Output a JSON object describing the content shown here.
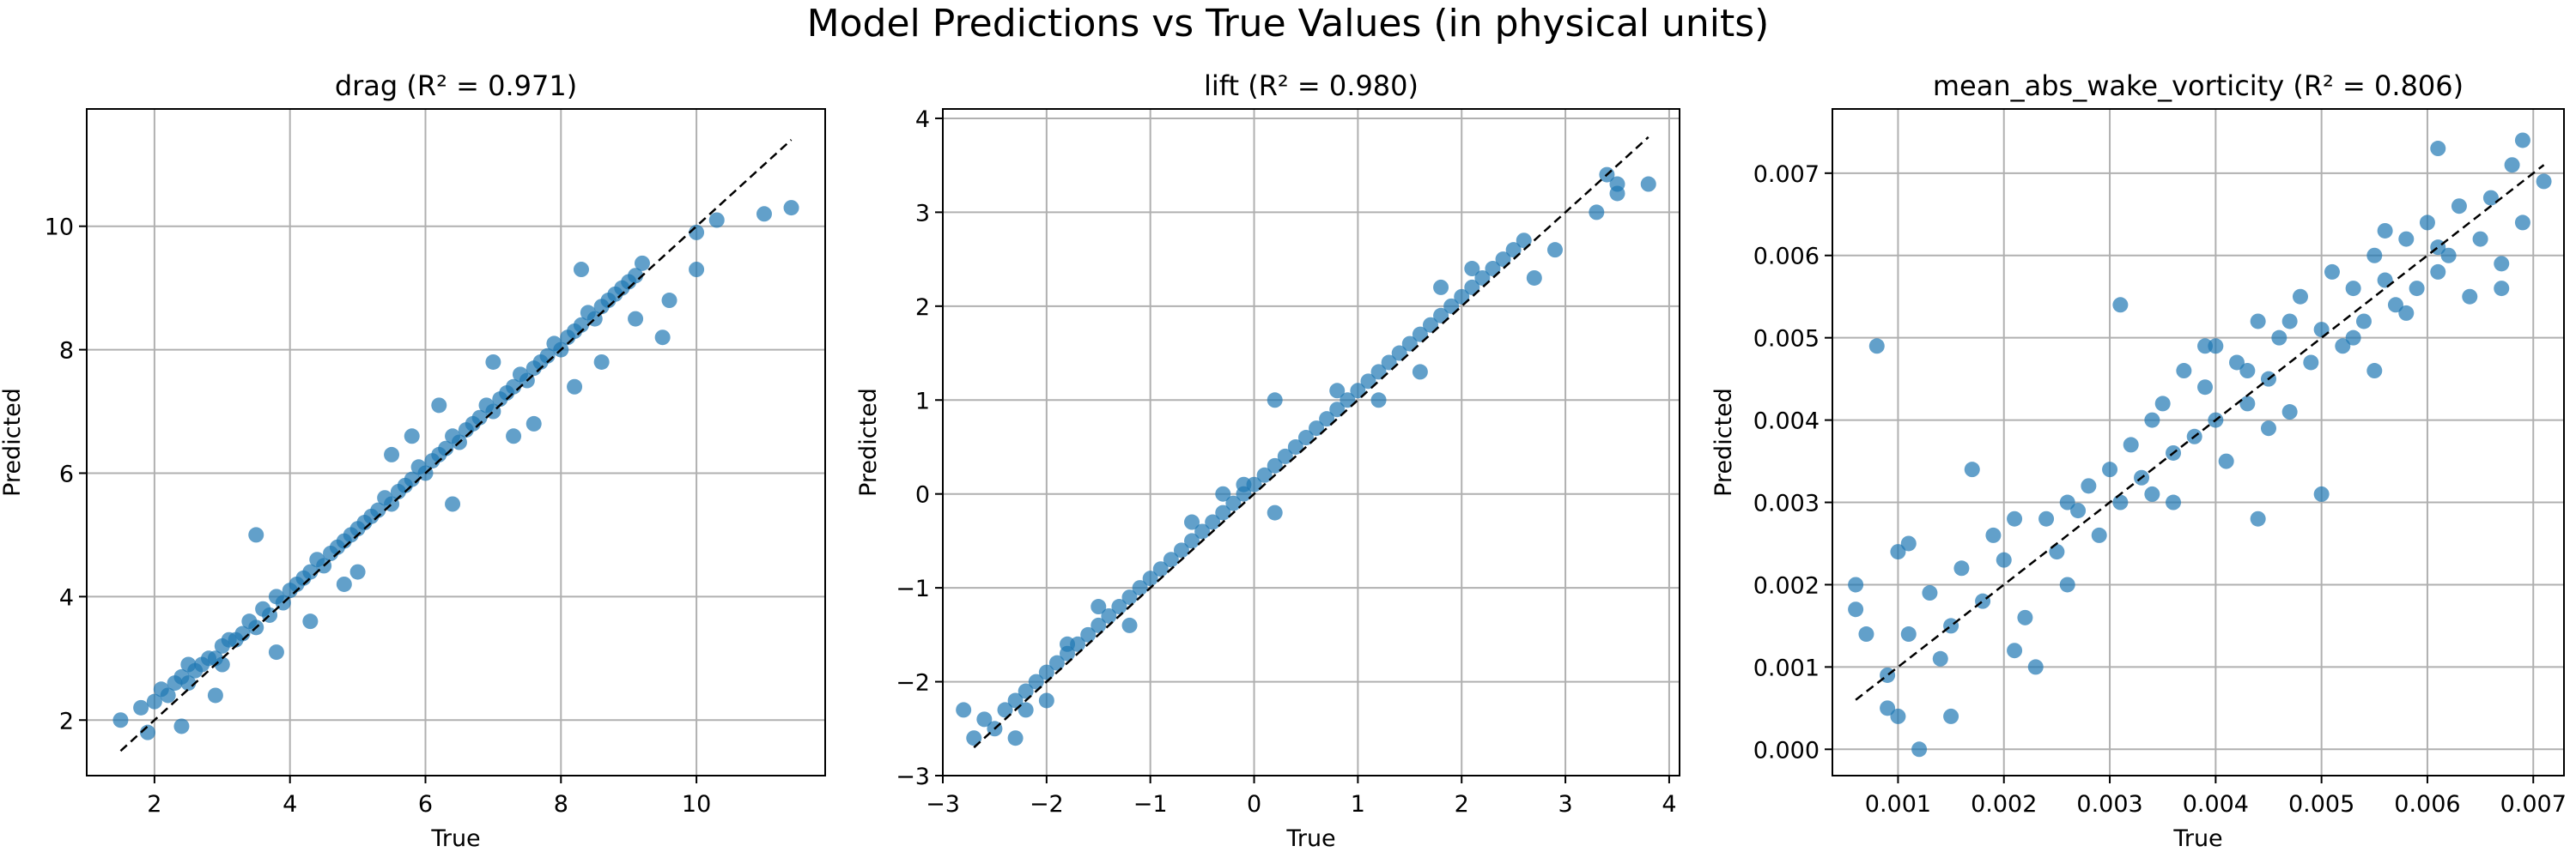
{
  "figure": {
    "title": "Model Predictions vs True Values (in physical units)",
    "point_color": "#1f77b4",
    "reference_line_color": "#000000",
    "grid_color": "#b0b0b0"
  },
  "chart_data": [
    {
      "type": "scatter",
      "title": "drag (R² = 0.971)",
      "xlabel": "True",
      "ylabel": "Predicted",
      "xlim": [
        1.0,
        11.9
      ],
      "ylim": [
        1.1,
        11.9
      ],
      "xticks": [
        "2",
        "4",
        "6",
        "8",
        "10"
      ],
      "yticks": [
        "2",
        "4",
        "6",
        "8",
        "10"
      ],
      "grid": true,
      "reference_line": [
        [
          1.5,
          1.5
        ],
        [
          11.4,
          11.4
        ]
      ],
      "points": [
        [
          1.5,
          2.0
        ],
        [
          1.8,
          2.2
        ],
        [
          2.0,
          2.3
        ],
        [
          2.1,
          2.5
        ],
        [
          2.2,
          2.4
        ],
        [
          2.3,
          2.6
        ],
        [
          2.4,
          2.7
        ],
        [
          2.5,
          2.6
        ],
        [
          2.5,
          2.9
        ],
        [
          2.6,
          2.8
        ],
        [
          2.7,
          2.9
        ],
        [
          2.8,
          3.0
        ],
        [
          2.9,
          3.0
        ],
        [
          3.0,
          3.2
        ],
        [
          3.0,
          2.9
        ],
        [
          3.1,
          3.3
        ],
        [
          3.2,
          3.3
        ],
        [
          3.3,
          3.4
        ],
        [
          3.4,
          3.6
        ],
        [
          3.5,
          3.5
        ],
        [
          3.6,
          3.8
        ],
        [
          3.7,
          3.7
        ],
        [
          3.8,
          4.0
        ],
        [
          3.9,
          3.9
        ],
        [
          4.0,
          4.1
        ],
        [
          4.1,
          4.2
        ],
        [
          4.2,
          4.3
        ],
        [
          4.3,
          4.4
        ],
        [
          4.4,
          4.6
        ],
        [
          4.5,
          4.5
        ],
        [
          4.6,
          4.7
        ],
        [
          4.7,
          4.8
        ],
        [
          4.8,
          4.9
        ],
        [
          4.9,
          5.0
        ],
        [
          5.0,
          5.1
        ],
        [
          5.1,
          5.2
        ],
        [
          5.2,
          5.3
        ],
        [
          5.3,
          5.4
        ],
        [
          5.4,
          5.6
        ],
        [
          5.5,
          5.5
        ],
        [
          5.6,
          5.7
        ],
        [
          5.7,
          5.8
        ],
        [
          5.8,
          5.9
        ],
        [
          5.9,
          6.1
        ],
        [
          6.0,
          6.0
        ],
        [
          6.1,
          6.2
        ],
        [
          6.2,
          6.3
        ],
        [
          6.3,
          6.4
        ],
        [
          6.4,
          6.6
        ],
        [
          6.5,
          6.5
        ],
        [
          6.6,
          6.7
        ],
        [
          6.7,
          6.8
        ],
        [
          6.8,
          6.9
        ],
        [
          6.9,
          7.1
        ],
        [
          7.0,
          7.0
        ],
        [
          7.1,
          7.2
        ],
        [
          7.2,
          7.3
        ],
        [
          7.3,
          7.4
        ],
        [
          7.4,
          7.6
        ],
        [
          7.5,
          7.5
        ],
        [
          7.6,
          7.7
        ],
        [
          7.7,
          7.8
        ],
        [
          7.8,
          7.9
        ],
        [
          7.9,
          8.1
        ],
        [
          8.0,
          8.0
        ],
        [
          8.1,
          8.2
        ],
        [
          8.2,
          8.3
        ],
        [
          8.3,
          8.4
        ],
        [
          8.4,
          8.6
        ],
        [
          8.5,
          8.5
        ],
        [
          8.6,
          8.7
        ],
        [
          8.7,
          8.8
        ],
        [
          8.8,
          8.9
        ],
        [
          8.9,
          9.0
        ],
        [
          9.0,
          9.1
        ],
        [
          9.1,
          9.2
        ],
        [
          3.5,
          5.0
        ],
        [
          4.3,
          3.6
        ],
        [
          5.0,
          4.4
        ],
        [
          5.8,
          6.6
        ],
        [
          6.4,
          5.5
        ],
        [
          7.0,
          7.8
        ],
        [
          7.6,
          6.8
        ],
        [
          8.6,
          7.8
        ],
        [
          8.3,
          9.3
        ],
        [
          9.1,
          8.5
        ],
        [
          9.5,
          8.2
        ],
        [
          9.6,
          8.8
        ],
        [
          10.0,
          9.3
        ],
        [
          10.0,
          9.9
        ],
        [
          10.3,
          10.1
        ],
        [
          11.0,
          10.2
        ],
        [
          11.4,
          10.3
        ],
        [
          1.9,
          1.8
        ],
        [
          2.4,
          1.9
        ],
        [
          2.9,
          2.4
        ],
        [
          3.8,
          3.1
        ],
        [
          4.8,
          4.2
        ],
        [
          5.5,
          6.3
        ],
        [
          6.2,
          7.1
        ],
        [
          7.3,
          6.6
        ],
        [
          8.2,
          7.4
        ],
        [
          9.2,
          9.4
        ]
      ]
    },
    {
      "type": "scatter",
      "title": "lift (R² = 0.980)",
      "xlabel": "True",
      "ylabel": "Predicted",
      "xlim": [
        -3.0,
        4.1
      ],
      "ylim": [
        -3.0,
        4.1
      ],
      "xticks": [
        "−3",
        "−2",
        "−1",
        "0",
        "1",
        "2",
        "3",
        "4"
      ],
      "yticks": [
        "−3",
        "−2",
        "−1",
        "0",
        "1",
        "2",
        "3",
        "4"
      ],
      "grid": true,
      "reference_line": [
        [
          -2.7,
          -2.7
        ],
        [
          3.8,
          3.8
        ]
      ],
      "points": [
        [
          -2.7,
          -2.6
        ],
        [
          -2.6,
          -2.4
        ],
        [
          -2.5,
          -2.5
        ],
        [
          -2.4,
          -2.3
        ],
        [
          -2.3,
          -2.2
        ],
        [
          -2.2,
          -2.1
        ],
        [
          -2.1,
          -2.0
        ],
        [
          -2.0,
          -1.9
        ],
        [
          -1.9,
          -1.8
        ],
        [
          -1.8,
          -1.7
        ],
        [
          -1.7,
          -1.6
        ],
        [
          -1.6,
          -1.5
        ],
        [
          -1.5,
          -1.4
        ],
        [
          -1.4,
          -1.3
        ],
        [
          -1.3,
          -1.2
        ],
        [
          -1.2,
          -1.1
        ],
        [
          -1.1,
          -1.0
        ],
        [
          -1.0,
          -0.9
        ],
        [
          -0.9,
          -0.8
        ],
        [
          -0.8,
          -0.7
        ],
        [
          -0.7,
          -0.6
        ],
        [
          -0.6,
          -0.5
        ],
        [
          -0.5,
          -0.4
        ],
        [
          -0.4,
          -0.3
        ],
        [
          -0.3,
          -0.2
        ],
        [
          -0.2,
          -0.1
        ],
        [
          -0.1,
          0.0
        ],
        [
          0.0,
          0.1
        ],
        [
          0.1,
          0.2
        ],
        [
          0.2,
          0.3
        ],
        [
          0.3,
          0.4
        ],
        [
          0.4,
          0.5
        ],
        [
          0.5,
          0.6
        ],
        [
          0.6,
          0.7
        ],
        [
          0.7,
          0.8
        ],
        [
          0.8,
          0.9
        ],
        [
          0.9,
          1.0
        ],
        [
          1.0,
          1.1
        ],
        [
          1.1,
          1.2
        ],
        [
          1.2,
          1.3
        ],
        [
          1.3,
          1.4
        ],
        [
          1.4,
          1.5
        ],
        [
          1.5,
          1.6
        ],
        [
          1.6,
          1.7
        ],
        [
          1.7,
          1.8
        ],
        [
          1.8,
          1.9
        ],
        [
          1.9,
          2.0
        ],
        [
          2.0,
          2.1
        ],
        [
          2.1,
          2.2
        ],
        [
          2.2,
          2.3
        ],
        [
          2.3,
          2.4
        ],
        [
          2.4,
          2.5
        ],
        [
          2.5,
          2.6
        ],
        [
          2.6,
          2.7
        ],
        [
          -2.8,
          -2.3
        ],
        [
          -2.3,
          -2.6
        ],
        [
          -1.8,
          -1.6
        ],
        [
          -1.2,
          -1.4
        ],
        [
          -0.6,
          -0.3
        ],
        [
          0.2,
          -0.2
        ],
        [
          0.8,
          1.1
        ],
        [
          1.6,
          1.3
        ],
        [
          2.1,
          2.4
        ],
        [
          2.7,
          2.3
        ],
        [
          3.4,
          3.4
        ],
        [
          3.5,
          3.3
        ],
        [
          3.5,
          3.2
        ],
        [
          3.3,
          3.0
        ],
        [
          3.8,
          3.3
        ],
        [
          2.9,
          2.6
        ],
        [
          1.2,
          1.0
        ],
        [
          -0.3,
          0.0
        ],
        [
          -1.5,
          -1.2
        ],
        [
          -2.2,
          -2.3
        ],
        [
          0.2,
          1.0
        ],
        [
          -0.1,
          0.1
        ],
        [
          -2.0,
          -2.2
        ],
        [
          1.8,
          2.2
        ]
      ]
    },
    {
      "type": "scatter",
      "title": "mean_abs_wake_vorticity (R² = 0.806)",
      "xlabel": "True",
      "ylabel": "Predicted",
      "xlim": [
        0.00038,
        0.00729
      ],
      "ylim": [
        -0.00032,
        0.00778
      ],
      "xticks": [
        "0.001",
        "0.002",
        "0.003",
        "0.004",
        "0.005",
        "0.006",
        "0.007"
      ],
      "yticks": [
        "0.000",
        "0.001",
        "0.002",
        "0.003",
        "0.004",
        "0.005",
        "0.006",
        "0.007"
      ],
      "grid": true,
      "reference_line": [
        [
          0.0006,
          0.0006
        ],
        [
          0.0071,
          0.0071
        ]
      ],
      "points": [
        [
          0.0006,
          0.002
        ],
        [
          0.0006,
          0.0017
        ],
        [
          0.0007,
          0.0014
        ],
        [
          0.0008,
          0.0049
        ],
        [
          0.0009,
          0.0009
        ],
        [
          0.0009,
          0.0005
        ],
        [
          0.001,
          0.0004
        ],
        [
          0.001,
          0.0024
        ],
        [
          0.0011,
          0.0025
        ],
        [
          0.0011,
          0.0014
        ],
        [
          0.0012,
          0.0
        ],
        [
          0.0013,
          0.0019
        ],
        [
          0.0014,
          0.0011
        ],
        [
          0.0015,
          0.0004
        ],
        [
          0.0015,
          0.0015
        ],
        [
          0.0016,
          0.0022
        ],
        [
          0.0017,
          0.0034
        ],
        [
          0.0018,
          0.0018
        ],
        [
          0.0019,
          0.0026
        ],
        [
          0.002,
          0.0023
        ],
        [
          0.0021,
          0.0012
        ],
        [
          0.0022,
          0.0016
        ],
        [
          0.0023,
          0.001
        ],
        [
          0.0024,
          0.0028
        ],
        [
          0.0025,
          0.0024
        ],
        [
          0.0026,
          0.003
        ],
        [
          0.0027,
          0.0029
        ],
        [
          0.0028,
          0.0032
        ],
        [
          0.0029,
          0.0026
        ],
        [
          0.003,
          0.0034
        ],
        [
          0.0031,
          0.003
        ],
        [
          0.0031,
          0.0054
        ],
        [
          0.0032,
          0.0037
        ],
        [
          0.0033,
          0.0033
        ],
        [
          0.0034,
          0.004
        ],
        [
          0.0034,
          0.0031
        ],
        [
          0.0035,
          0.0042
        ],
        [
          0.0036,
          0.0036
        ],
        [
          0.0037,
          0.0046
        ],
        [
          0.0038,
          0.0038
        ],
        [
          0.0039,
          0.0044
        ],
        [
          0.004,
          0.004
        ],
        [
          0.004,
          0.0049
        ],
        [
          0.0041,
          0.0035
        ],
        [
          0.0042,
          0.0047
        ],
        [
          0.0043,
          0.0042
        ],
        [
          0.0044,
          0.0028
        ],
        [
          0.0044,
          0.0052
        ],
        [
          0.0045,
          0.0045
        ],
        [
          0.0046,
          0.005
        ],
        [
          0.0047,
          0.0041
        ],
        [
          0.0048,
          0.0055
        ],
        [
          0.0049,
          0.0047
        ],
        [
          0.005,
          0.0051
        ],
        [
          0.005,
          0.0031
        ],
        [
          0.0051,
          0.0058
        ],
        [
          0.0052,
          0.0049
        ],
        [
          0.0053,
          0.0056
        ],
        [
          0.0054,
          0.0052
        ],
        [
          0.0055,
          0.006
        ],
        [
          0.0055,
          0.0046
        ],
        [
          0.0056,
          0.0057
        ],
        [
          0.0057,
          0.0054
        ],
        [
          0.0058,
          0.0062
        ],
        [
          0.0059,
          0.0056
        ],
        [
          0.006,
          0.0064
        ],
        [
          0.0061,
          0.0058
        ],
        [
          0.0061,
          0.0073
        ],
        [
          0.0062,
          0.006
        ],
        [
          0.0063,
          0.0066
        ],
        [
          0.0064,
          0.0055
        ],
        [
          0.0065,
          0.0062
        ],
        [
          0.0066,
          0.0067
        ],
        [
          0.0067,
          0.0059
        ],
        [
          0.0068,
          0.0071
        ],
        [
          0.0069,
          0.0074
        ],
        [
          0.0069,
          0.0064
        ],
        [
          0.0071,
          0.0069
        ],
        [
          0.0067,
          0.0056
        ],
        [
          0.0047,
          0.0052
        ],
        [
          0.0053,
          0.005
        ],
        [
          0.0058,
          0.0053
        ],
        [
          0.0036,
          0.003
        ],
        [
          0.0043,
          0.0046
        ],
        [
          0.0026,
          0.002
        ],
        [
          0.0021,
          0.0028
        ],
        [
          0.0039,
          0.0049
        ],
        [
          0.0056,
          0.0063
        ],
        [
          0.0061,
          0.0061
        ],
        [
          0.0045,
          0.0039
        ]
      ]
    }
  ]
}
